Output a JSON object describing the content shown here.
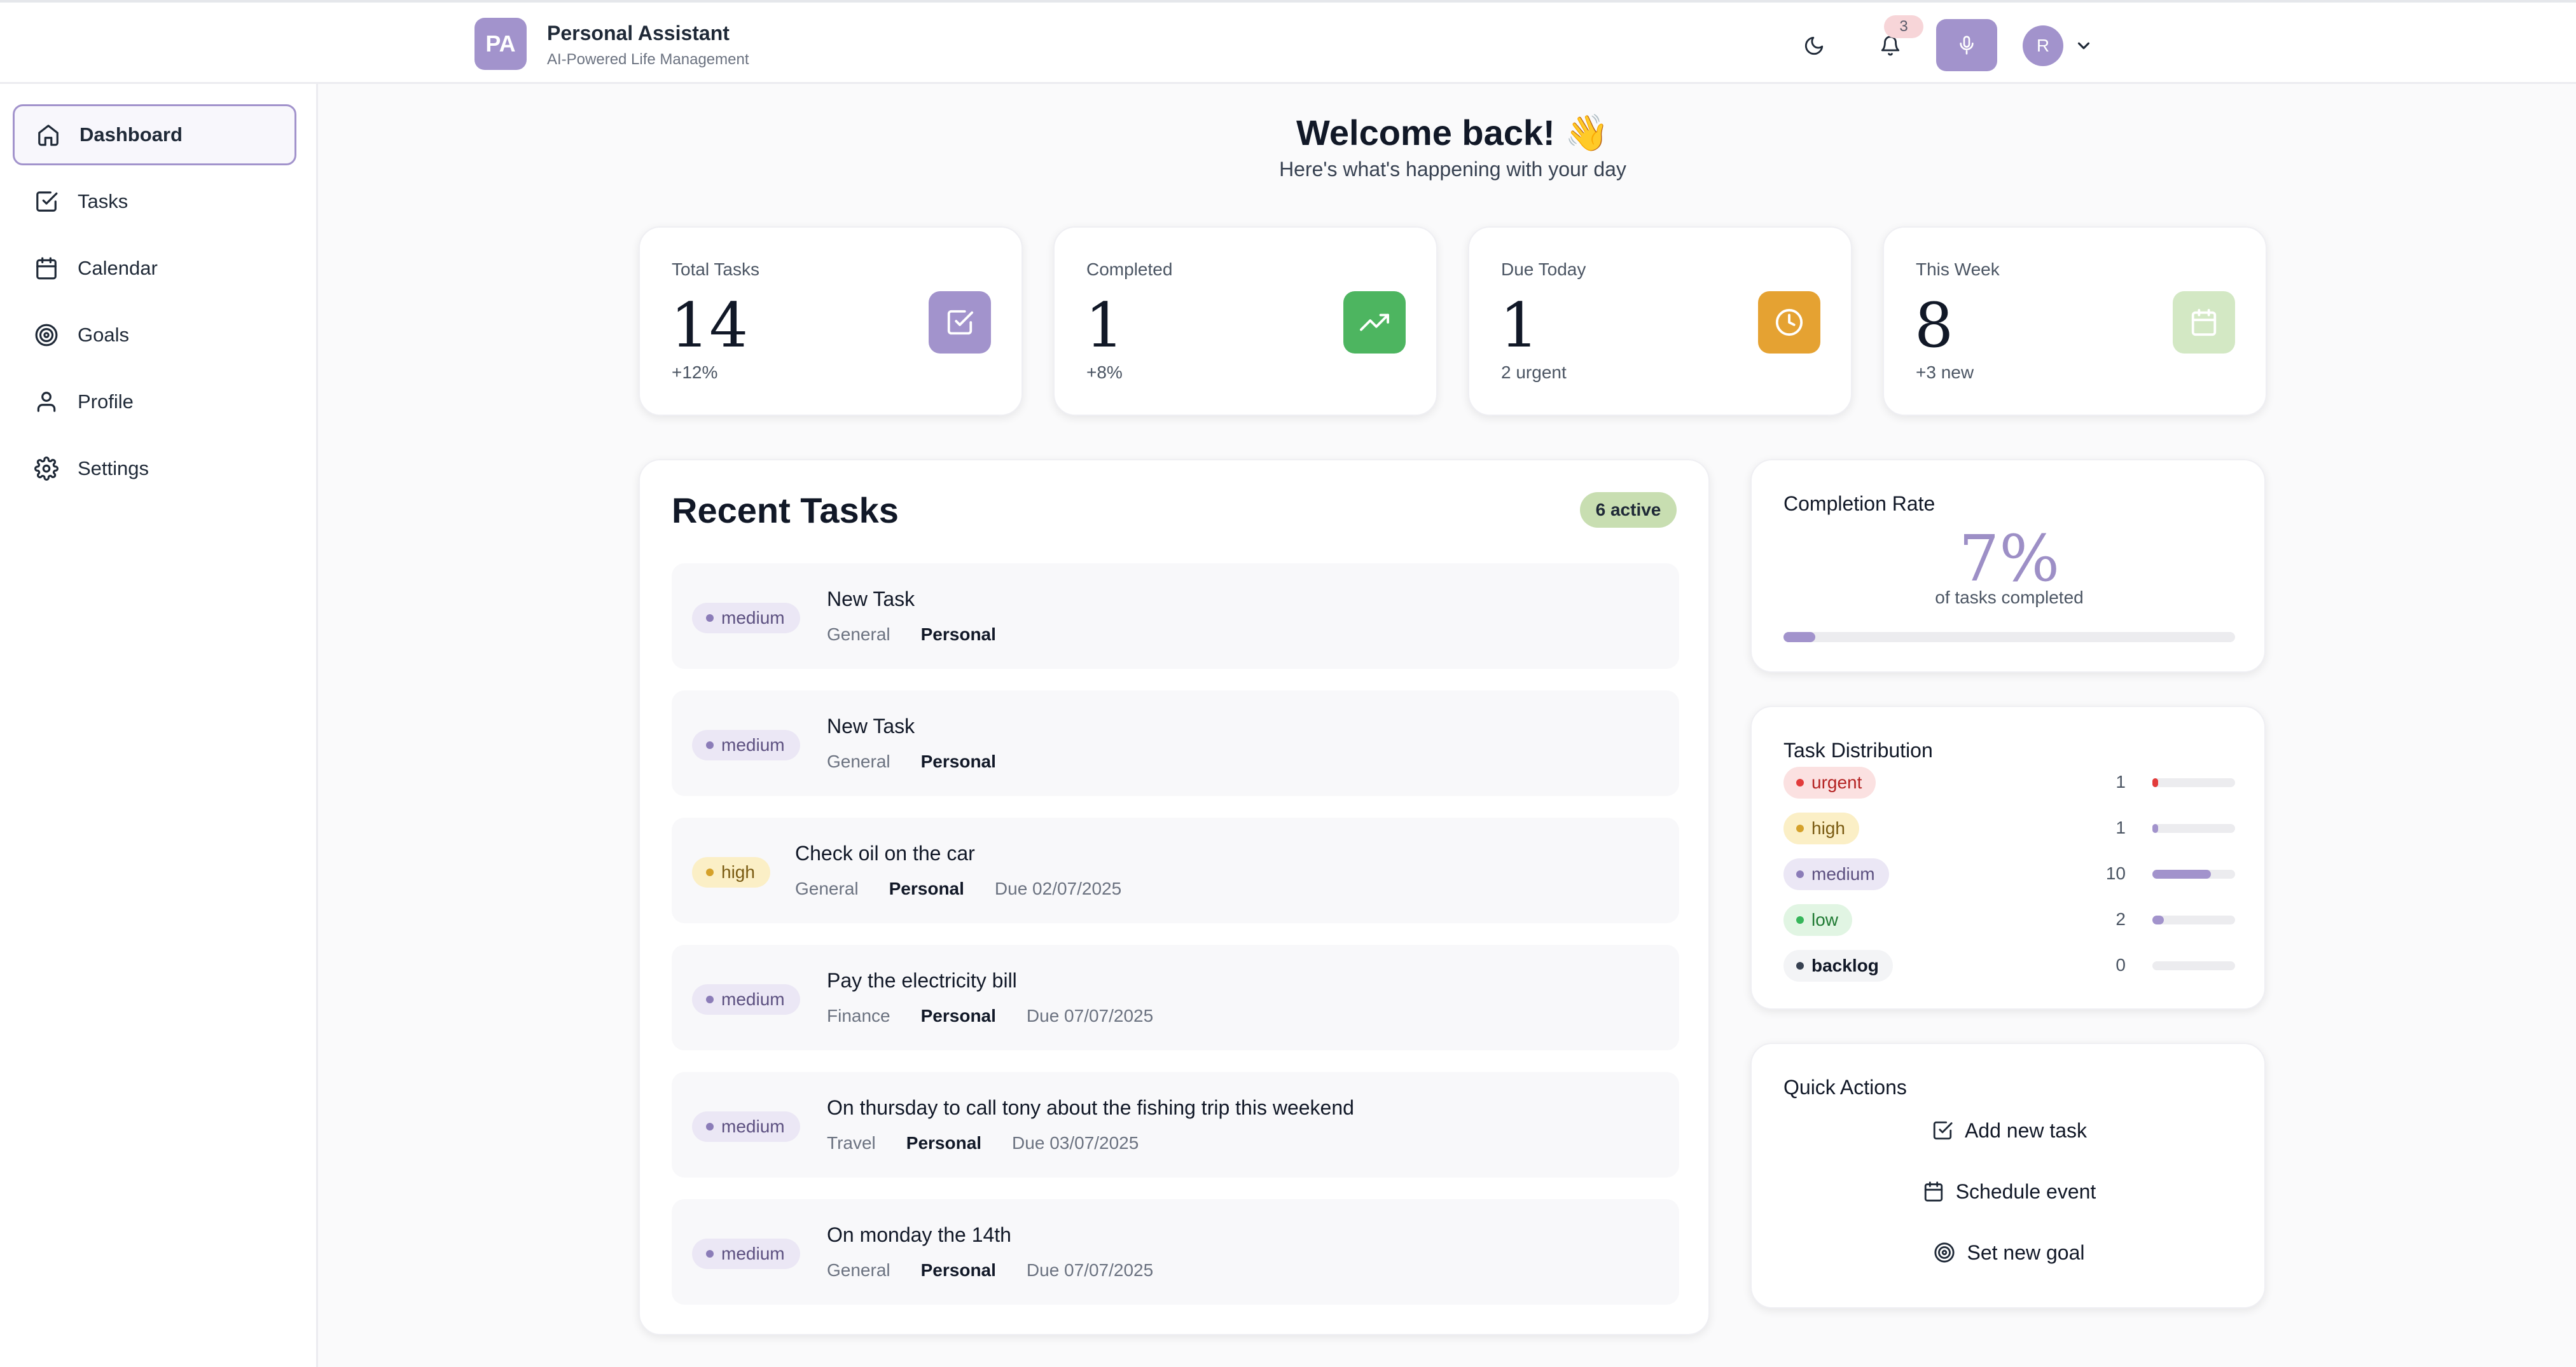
{
  "header": {
    "logo_text": "PA",
    "app_title": "Personal Assistant",
    "app_subtitle": "AI-Powered Life Management",
    "notification_count": "3",
    "avatar_initial": "R"
  },
  "sidebar": {
    "items": [
      {
        "label": "Dashboard",
        "icon": "home-icon",
        "active": true
      },
      {
        "label": "Tasks",
        "icon": "checkbox-icon"
      },
      {
        "label": "Calendar",
        "icon": "calendar-icon"
      },
      {
        "label": "Goals",
        "icon": "target-icon"
      },
      {
        "label": "Profile",
        "icon": "user-icon"
      },
      {
        "label": "Settings",
        "icon": "gear-icon"
      }
    ]
  },
  "welcome": {
    "title": "Welcome back! 👋",
    "subtitle": "Here's what's happening with your day"
  },
  "stats": [
    {
      "label": "Total Tasks",
      "value": "14",
      "change": "+12%",
      "icon": "checkbox-icon",
      "color": "#a293cc"
    },
    {
      "label": "Completed",
      "value": "1",
      "change": "+8%",
      "icon": "trending-up-icon",
      "color": "#4db560"
    },
    {
      "label": "Due Today",
      "value": "1",
      "change": "2 urgent",
      "icon": "clock-icon",
      "color": "#e5a232"
    },
    {
      "label": "This Week",
      "value": "8",
      "change": "+3 new",
      "icon": "calendar-icon",
      "color": "#d3e8c4"
    }
  ],
  "recent_tasks": {
    "title": "Recent Tasks",
    "active_badge": "6 active",
    "items": [
      {
        "priority": "medium",
        "title": "New Task",
        "category": "General",
        "owner": "Personal",
        "due": ""
      },
      {
        "priority": "medium",
        "title": "New Task",
        "category": "General",
        "owner": "Personal",
        "due": ""
      },
      {
        "priority": "high",
        "title": "Check oil on the car",
        "category": "General",
        "owner": "Personal",
        "due": "Due 02/07/2025"
      },
      {
        "priority": "medium",
        "title": "Pay the electricity bill",
        "category": "Finance",
        "owner": "Personal",
        "due": "Due 07/07/2025"
      },
      {
        "priority": "medium",
        "title": "On thursday to call tony about the fishing trip this weekend",
        "category": "Travel",
        "owner": "Personal",
        "due": "Due 03/07/2025"
      },
      {
        "priority": "medium",
        "title": "On monday the 14th",
        "category": "General",
        "owner": "Personal",
        "due": "Due 07/07/2025"
      }
    ]
  },
  "completion": {
    "title": "Completion Rate",
    "value": "7%",
    "caption": "of tasks completed",
    "fraction": 0.07
  },
  "distribution": {
    "title": "Task Distribution",
    "items": [
      {
        "label": "urgent",
        "count": "1",
        "fraction": 0.07,
        "color": "#e23b3b"
      },
      {
        "label": "high",
        "count": "1",
        "fraction": 0.07,
        "color": "#a293cc"
      },
      {
        "label": "medium",
        "count": "10",
        "fraction": 0.71,
        "color": "#a293cc"
      },
      {
        "label": "low",
        "count": "2",
        "fraction": 0.14,
        "color": "#a293cc"
      },
      {
        "label": "backlog",
        "count": "0",
        "fraction": 0,
        "color": "#a293cc"
      }
    ]
  },
  "quick_actions": {
    "title": "Quick Actions",
    "items": [
      {
        "label": "Add new task",
        "icon": "checkbox-icon"
      },
      {
        "label": "Schedule event",
        "icon": "calendar-icon"
      },
      {
        "label": "Set new goal",
        "icon": "target-icon"
      }
    ]
  }
}
